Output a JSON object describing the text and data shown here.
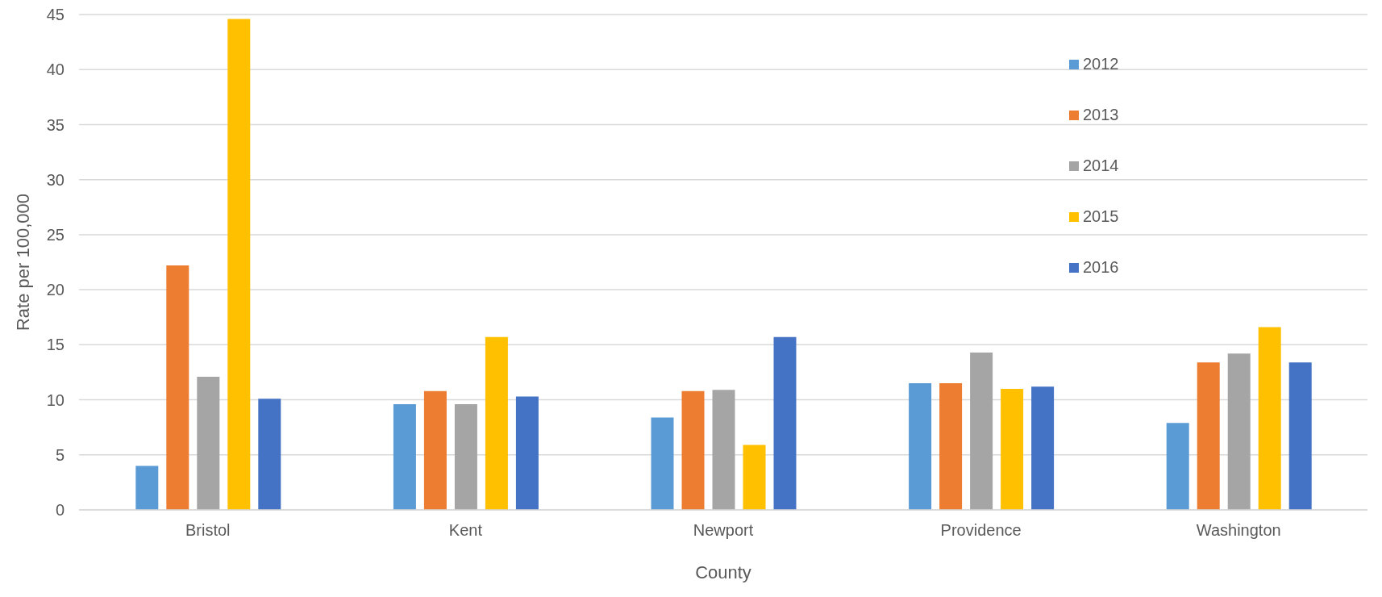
{
  "chart_data": {
    "type": "bar",
    "xlabel": "County",
    "ylabel": "Rate per 100,000",
    "categories": [
      "Bristol",
      "Kent",
      "Newport",
      "Providence",
      "Washington"
    ],
    "series": [
      {
        "name": "2012",
        "color": "#5b9bd5",
        "values": [
          4.0,
          9.6,
          8.4,
          11.5,
          7.9
        ]
      },
      {
        "name": "2013",
        "color": "#ed7d31",
        "values": [
          22.2,
          10.8,
          10.8,
          11.5,
          13.4
        ]
      },
      {
        "name": "2014",
        "color": "#a5a5a5",
        "values": [
          12.1,
          9.6,
          10.9,
          14.3,
          14.2
        ]
      },
      {
        "name": "2015",
        "color": "#ffc000",
        "values": [
          44.6,
          15.7,
          5.9,
          11.0,
          16.6
        ]
      },
      {
        "name": "2016",
        "color": "#4472c4",
        "values": [
          10.1,
          10.3,
          15.7,
          11.2,
          13.4
        ]
      }
    ],
    "ylim": [
      0,
      45
    ],
    "yticks": [
      0,
      5,
      10,
      15,
      20,
      25,
      30,
      35,
      40,
      45
    ],
    "grid": "y",
    "legend": "top right"
  }
}
